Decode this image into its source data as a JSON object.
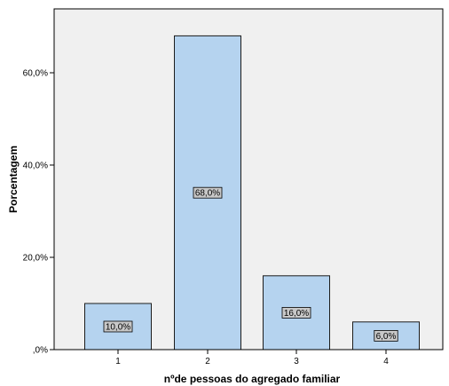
{
  "chart_data": {
    "type": "bar",
    "categories": [
      "1",
      "2",
      "3",
      "4"
    ],
    "values": [
      10.0,
      68.0,
      16.0,
      6.0
    ],
    "data_labels": [
      "10,0%",
      "68,0%",
      "16,0%",
      "6,0%"
    ],
    "xlabel": "nºde pessoas do agregado familiar",
    "ylabel": "Porcentagem",
    "ylim": [
      0,
      70
    ],
    "yticks": [
      0,
      20,
      40,
      60
    ],
    "ytick_labels": [
      ",0%",
      "20,0%",
      "40,0%",
      "60,0%"
    ],
    "grid": false,
    "legend": "none"
  },
  "colors": {
    "plot_background": "#f0f0f0",
    "bar_fill": "#b5d3ef",
    "bar_stroke": "#1c1c1c",
    "label_box": "#c8c8c8"
  }
}
